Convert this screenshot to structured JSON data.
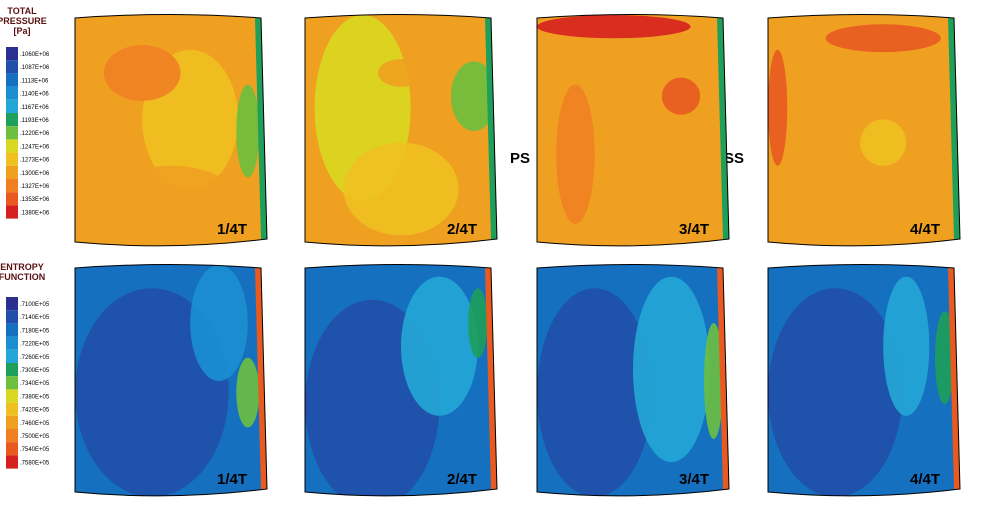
{
  "rows": [
    {
      "legend": {
        "title": [
          "TOTAL",
          "PRESSURE",
          "[Pa]"
        ],
        "labels": [
          ".1060E+06",
          ".1087E+06",
          ".1113E+06",
          ".1140E+06",
          ".1167E+06",
          ".1193E+06",
          ".1220E+06",
          ".1247E+06",
          ".1273E+06",
          ".1300E+06",
          ".1327E+06",
          ".1353E+06",
          ".1380E+06"
        ]
      },
      "panels": [
        "1/4T",
        "2/4T",
        "3/4T",
        "4/4T"
      ]
    },
    {
      "legend": {
        "title": [
          "ENTROPY",
          "FUNCTION"
        ],
        "labels": [
          ".7100E+05",
          ".7140E+05",
          ".7180E+05",
          ".7220E+05",
          ".7260E+05",
          ".7300E+05",
          ".7340E+05",
          ".7380E+05",
          ".7420E+05",
          ".7460E+05",
          ".7500E+05",
          ".7540E+05",
          ".7580E+05"
        ]
      },
      "panels": [
        "1/4T",
        "2/4T",
        "3/4T",
        "4/4T"
      ]
    }
  ],
  "colors": [
    "#2b2f8f",
    "#1f4fa8",
    "#1670c0",
    "#1b8fd0",
    "#23a7d6",
    "#1e9f5a",
    "#6cbf3f",
    "#d8d820",
    "#f0c020",
    "#f0a020",
    "#ef7f22",
    "#e85a20",
    "#d62020"
  ],
  "side_labels": [
    "PS",
    "SS"
  ]
}
